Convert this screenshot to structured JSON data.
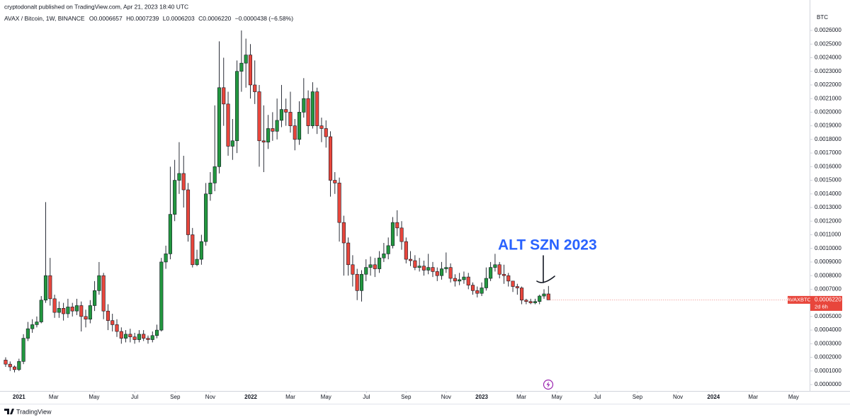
{
  "header": {
    "publisher": "cryptodonalt published on TradingView.com, Apr 21, 2023 18:40 UTC",
    "symbol": "AVAX / Bitcoin, 1W, BINANCE",
    "ohlc": [
      {
        "label": "O",
        "value": "0.0006657"
      },
      {
        "label": "H",
        "value": "0.0007239"
      },
      {
        "label": "L",
        "value": "0.0006203"
      },
      {
        "label": "C",
        "value": "0.0006220"
      }
    ],
    "change": "−0.0000438 (−6.58%)"
  },
  "footer": {
    "brand": "TradingView"
  },
  "chart_data": {
    "type": "candlestick",
    "axis_label": "BTC",
    "annotation": "ALT SZN 2023",
    "price_tag": {
      "symbol": "AVAXBTC",
      "value_label": "0.0006220",
      "countdown": "2d 6h"
    },
    "up_color": "#22973f",
    "down_color": "#e8463c",
    "open": [
      0.00018,
      0.00015,
      0.00013,
      0.00011,
      0.00017,
      0.00034,
      0.00041,
      0.00044,
      0.00046,
      0.00062,
      0.0008,
      0.00063,
      0.00053,
      0.00056,
      0.00052,
      0.00057,
      0.00054,
      0.00058,
      0.0005,
      0.00048,
      0.00058,
      0.00069,
      0.0008,
      0.00054,
      0.00047,
      0.00044,
      0.00039,
      0.00034,
      0.00037,
      0.00035,
      0.00033,
      0.00037,
      0.00034,
      0.00033,
      0.00036,
      0.0004,
      0.0009,
      0.00096,
      0.00125,
      0.0015,
      0.00155,
      0.00143,
      0.0011,
      0.00088,
      0.00092,
      0.00105,
      0.0014,
      0.00148,
      0.0016,
      0.00218,
      0.00206,
      0.00175,
      0.00179,
      0.0023,
      0.00236,
      0.00242,
      0.0022,
      0.00215,
      0.00179,
      0.00178,
      0.00188,
      0.00186,
      0.00194,
      0.00202,
      0.002,
      0.0019,
      0.0018,
      0.002,
      0.0021,
      0.0019,
      0.00215,
      0.0019,
      0.00188,
      0.00182,
      0.0015,
      0.00148,
      0.00119,
      0.00104,
      0.00088,
      0.00081,
      0.00069,
      0.00081,
      0.00086,
      0.00088,
      0.00085,
      0.00093,
      0.00096,
      0.00102,
      0.00119,
      0.00115,
      0.00105,
      0.00092,
      0.00091,
      0.00086,
      0.00087,
      0.00084,
      0.00086,
      0.00083,
      0.0008,
      0.00085,
      0.00086,
      0.00078,
      0.00076,
      0.00077,
      0.00079,
      0.00073,
      0.00069,
      0.00067,
      0.00071,
      0.00078,
      0.00086,
      0.00088,
      0.00081,
      0.0008,
      0.00076,
      0.00072,
      0.00071,
      0.00062,
      0.00061,
      0.0006,
      0.00061,
      0.00065,
      0.0006657
    ],
    "high": [
      0.0002,
      0.00017,
      0.00014,
      0.00019,
      0.00037,
      0.00046,
      0.00048,
      0.0005,
      0.00065,
      0.00134,
      0.00093,
      0.00066,
      0.00061,
      0.0006,
      0.00063,
      0.0006,
      0.00063,
      0.00061,
      0.00055,
      0.00062,
      0.00076,
      0.0009,
      0.00082,
      0.00059,
      0.00052,
      0.00048,
      0.00042,
      0.0004,
      0.00041,
      0.00038,
      0.0004,
      0.0004,
      0.00036,
      0.00039,
      0.00044,
      0.00093,
      0.00102,
      0.0016,
      0.00165,
      0.00178,
      0.00168,
      0.00148,
      0.00115,
      0.00099,
      0.0011,
      0.00148,
      0.00156,
      0.00205,
      0.00252,
      0.0024,
      0.00215,
      0.00195,
      0.00238,
      0.0026,
      0.00254,
      0.0025,
      0.00238,
      0.0022,
      0.00205,
      0.00198,
      0.002,
      0.0021,
      0.0022,
      0.0021,
      0.00215,
      0.00195,
      0.00208,
      0.00225,
      0.00216,
      0.00222,
      0.00218,
      0.00196,
      0.00194,
      0.00186,
      0.00156,
      0.00152,
      0.00124,
      0.00108,
      0.00095,
      0.00085,
      0.00084,
      0.00092,
      0.00094,
      0.00093,
      0.00098,
      0.00104,
      0.00108,
      0.00123,
      0.00128,
      0.0012,
      0.00108,
      0.00098,
      0.00095,
      0.00093,
      0.00091,
      0.00096,
      0.0009,
      0.00086,
      0.0009,
      0.00097,
      0.00089,
      0.00081,
      0.00082,
      0.00083,
      0.00082,
      0.00075,
      0.00072,
      0.00075,
      0.00086,
      0.0009,
      0.00096,
      0.0009,
      0.00088,
      0.00082,
      0.00076,
      0.00074,
      0.00072,
      0.00063,
      0.00063,
      0.00063,
      0.00066,
      0.0007,
      0.0007239
    ],
    "low": [
      0.00013,
      0.0001,
      9e-05,
      0.0001,
      0.00015,
      0.00032,
      0.00038,
      0.00042,
      0.00045,
      0.0006,
      0.00058,
      0.00049,
      0.00049,
      0.00047,
      0.00049,
      0.0005,
      0.00051,
      0.00039,
      0.00042,
      0.00045,
      0.00054,
      0.00066,
      0.00048,
      0.0004,
      0.00039,
      0.00035,
      0.0003,
      0.00031,
      0.00031,
      0.0003,
      0.00031,
      0.00032,
      0.0003,
      0.00031,
      0.00034,
      0.00039,
      0.00085,
      0.00092,
      0.0012,
      0.0014,
      0.0013,
      0.00105,
      0.00086,
      0.00087,
      0.00088,
      0.00102,
      0.00135,
      0.00142,
      0.00155,
      0.0019,
      0.00168,
      0.00165,
      0.0017,
      0.00215,
      0.00218,
      0.0021,
      0.00206,
      0.0016,
      0.00156,
      0.00173,
      0.00179,
      0.0018,
      0.00189,
      0.0019,
      0.00185,
      0.00172,
      0.00176,
      0.00196,
      0.00184,
      0.00188,
      0.00184,
      0.00178,
      0.00174,
      0.00138,
      0.0014,
      0.00105,
      0.0008,
      0.0008,
      0.00072,
      0.00062,
      0.00061,
      0.00076,
      0.0008,
      0.00079,
      0.00082,
      0.0009,
      0.00092,
      0.001,
      0.00109,
      0.00099,
      0.00089,
      0.00087,
      0.00084,
      0.00083,
      0.0008,
      0.00081,
      0.00079,
      0.00076,
      0.00077,
      0.00082,
      0.00075,
      0.00072,
      0.00073,
      0.00074,
      0.0007,
      0.00066,
      0.00064,
      0.00065,
      0.00069,
      0.00076,
      0.00083,
      0.00078,
      0.00074,
      0.00072,
      0.00068,
      0.00066,
      0.00059,
      0.00059,
      0.00059,
      0.00059,
      0.00059,
      0.00063,
      0.0006203
    ],
    "close": [
      0.00015,
      0.00013,
      0.00011,
      0.00017,
      0.00034,
      0.00041,
      0.00044,
      0.00046,
      0.00062,
      0.0008,
      0.00063,
      0.00053,
      0.00056,
      0.00052,
      0.00057,
      0.00054,
      0.00058,
      0.0005,
      0.00048,
      0.00058,
      0.00069,
      0.0008,
      0.00054,
      0.00047,
      0.00044,
      0.00039,
      0.00034,
      0.00037,
      0.00035,
      0.00033,
      0.00037,
      0.00034,
      0.00033,
      0.00036,
      0.0004,
      0.0009,
      0.00096,
      0.00125,
      0.0015,
      0.00155,
      0.00143,
      0.0011,
      0.00088,
      0.00092,
      0.00105,
      0.0014,
      0.00148,
      0.0016,
      0.00218,
      0.00206,
      0.00175,
      0.00179,
      0.0023,
      0.00236,
      0.00242,
      0.0022,
      0.00215,
      0.00179,
      0.00178,
      0.00188,
      0.00186,
      0.00194,
      0.00202,
      0.002,
      0.0019,
      0.0018,
      0.002,
      0.0021,
      0.0019,
      0.00215,
      0.0019,
      0.00188,
      0.00182,
      0.0015,
      0.00148,
      0.00119,
      0.00104,
      0.00088,
      0.00081,
      0.00069,
      0.00081,
      0.00086,
      0.00088,
      0.00085,
      0.00093,
      0.00096,
      0.00102,
      0.00119,
      0.00115,
      0.00105,
      0.00092,
      0.00091,
      0.00086,
      0.00087,
      0.00084,
      0.00086,
      0.00083,
      0.0008,
      0.00085,
      0.00086,
      0.00078,
      0.00076,
      0.00077,
      0.00079,
      0.00073,
      0.00069,
      0.00067,
      0.00071,
      0.00078,
      0.00086,
      0.00088,
      0.00081,
      0.0008,
      0.00076,
      0.00072,
      0.00071,
      0.00062,
      0.00061,
      0.0006,
      0.00061,
      0.00065,
      0.0006657,
      0.000622
    ],
    "xlim": [
      -1.27,
      180.7
    ],
    "xticks": [
      {
        "value": 3.0,
        "label": "2021"
      },
      {
        "value": 10.8,
        "label": "Mar"
      },
      {
        "value": 19.9,
        "label": "May"
      },
      {
        "value": 29.0,
        "label": "Jul"
      },
      {
        "value": 38.1,
        "label": "Sep"
      },
      {
        "value": 46.0,
        "label": "Nov"
      },
      {
        "value": 55.1,
        "label": "2022"
      },
      {
        "value": 64.0,
        "label": "Mar"
      },
      {
        "value": 72.0,
        "label": "May"
      },
      {
        "value": 81.1,
        "label": "Jul"
      },
      {
        "value": 90.0,
        "label": "Sep"
      },
      {
        "value": 99.0,
        "label": "Nov"
      },
      {
        "value": 107.0,
        "label": "2023"
      },
      {
        "value": 115.9,
        "label": "Mar"
      },
      {
        "value": 123.9,
        "label": "May"
      },
      {
        "value": 133.0,
        "label": "Jul"
      },
      {
        "value": 142.0,
        "label": "Sep"
      },
      {
        "value": 151.1,
        "label": "Nov"
      },
      {
        "value": 159.1,
        "label": "2024"
      },
      {
        "value": 168.0,
        "label": "Mar"
      },
      {
        "value": 177.1,
        "label": "May"
      }
    ],
    "ylim": [
      -4.68e-05,
      0.0028237
    ],
    "yticks": [
      {
        "value": 0,
        "label": "0.0000000"
      },
      {
        "value": 0.0001,
        "label": "0.0001000"
      },
      {
        "value": 0.0002,
        "label": "0.0002000"
      },
      {
        "value": 0.0003,
        "label": "0.0003000"
      },
      {
        "value": 0.0004,
        "label": "0.0004000"
      },
      {
        "value": 0.0005,
        "label": "0.0005000"
      },
      {
        "value": 0.0006,
        "label": "0.0006000"
      },
      {
        "value": 0.0007,
        "label": "0.0007000"
      },
      {
        "value": 0.0008,
        "label": "0.0008000"
      },
      {
        "value": 0.0009,
        "label": "0.0009000"
      },
      {
        "value": 0.001,
        "label": "0.0010000"
      },
      {
        "value": 0.0011,
        "label": "0.0011000"
      },
      {
        "value": 0.0012,
        "label": "0.0012000"
      },
      {
        "value": 0.0013,
        "label": "0.0013000"
      },
      {
        "value": 0.0014,
        "label": "0.0014000"
      },
      {
        "value": 0.0015,
        "label": "0.0015000"
      },
      {
        "value": 0.0016,
        "label": "0.0016000"
      },
      {
        "value": 0.0017,
        "label": "0.0017000"
      },
      {
        "value": 0.0018,
        "label": "0.0018000"
      },
      {
        "value": 0.0019,
        "label": "0.0019000"
      },
      {
        "value": 0.002,
        "label": "0.0020000"
      },
      {
        "value": 0.0021,
        "label": "0.0021000"
      },
      {
        "value": 0.0022,
        "label": "0.0022000"
      },
      {
        "value": 0.0023,
        "label": "0.0023000"
      },
      {
        "value": 0.0024,
        "label": "0.0024000"
      },
      {
        "value": 0.0025,
        "label": "0.0025000"
      },
      {
        "value": 0.0026,
        "label": "0.0026000"
      }
    ]
  }
}
